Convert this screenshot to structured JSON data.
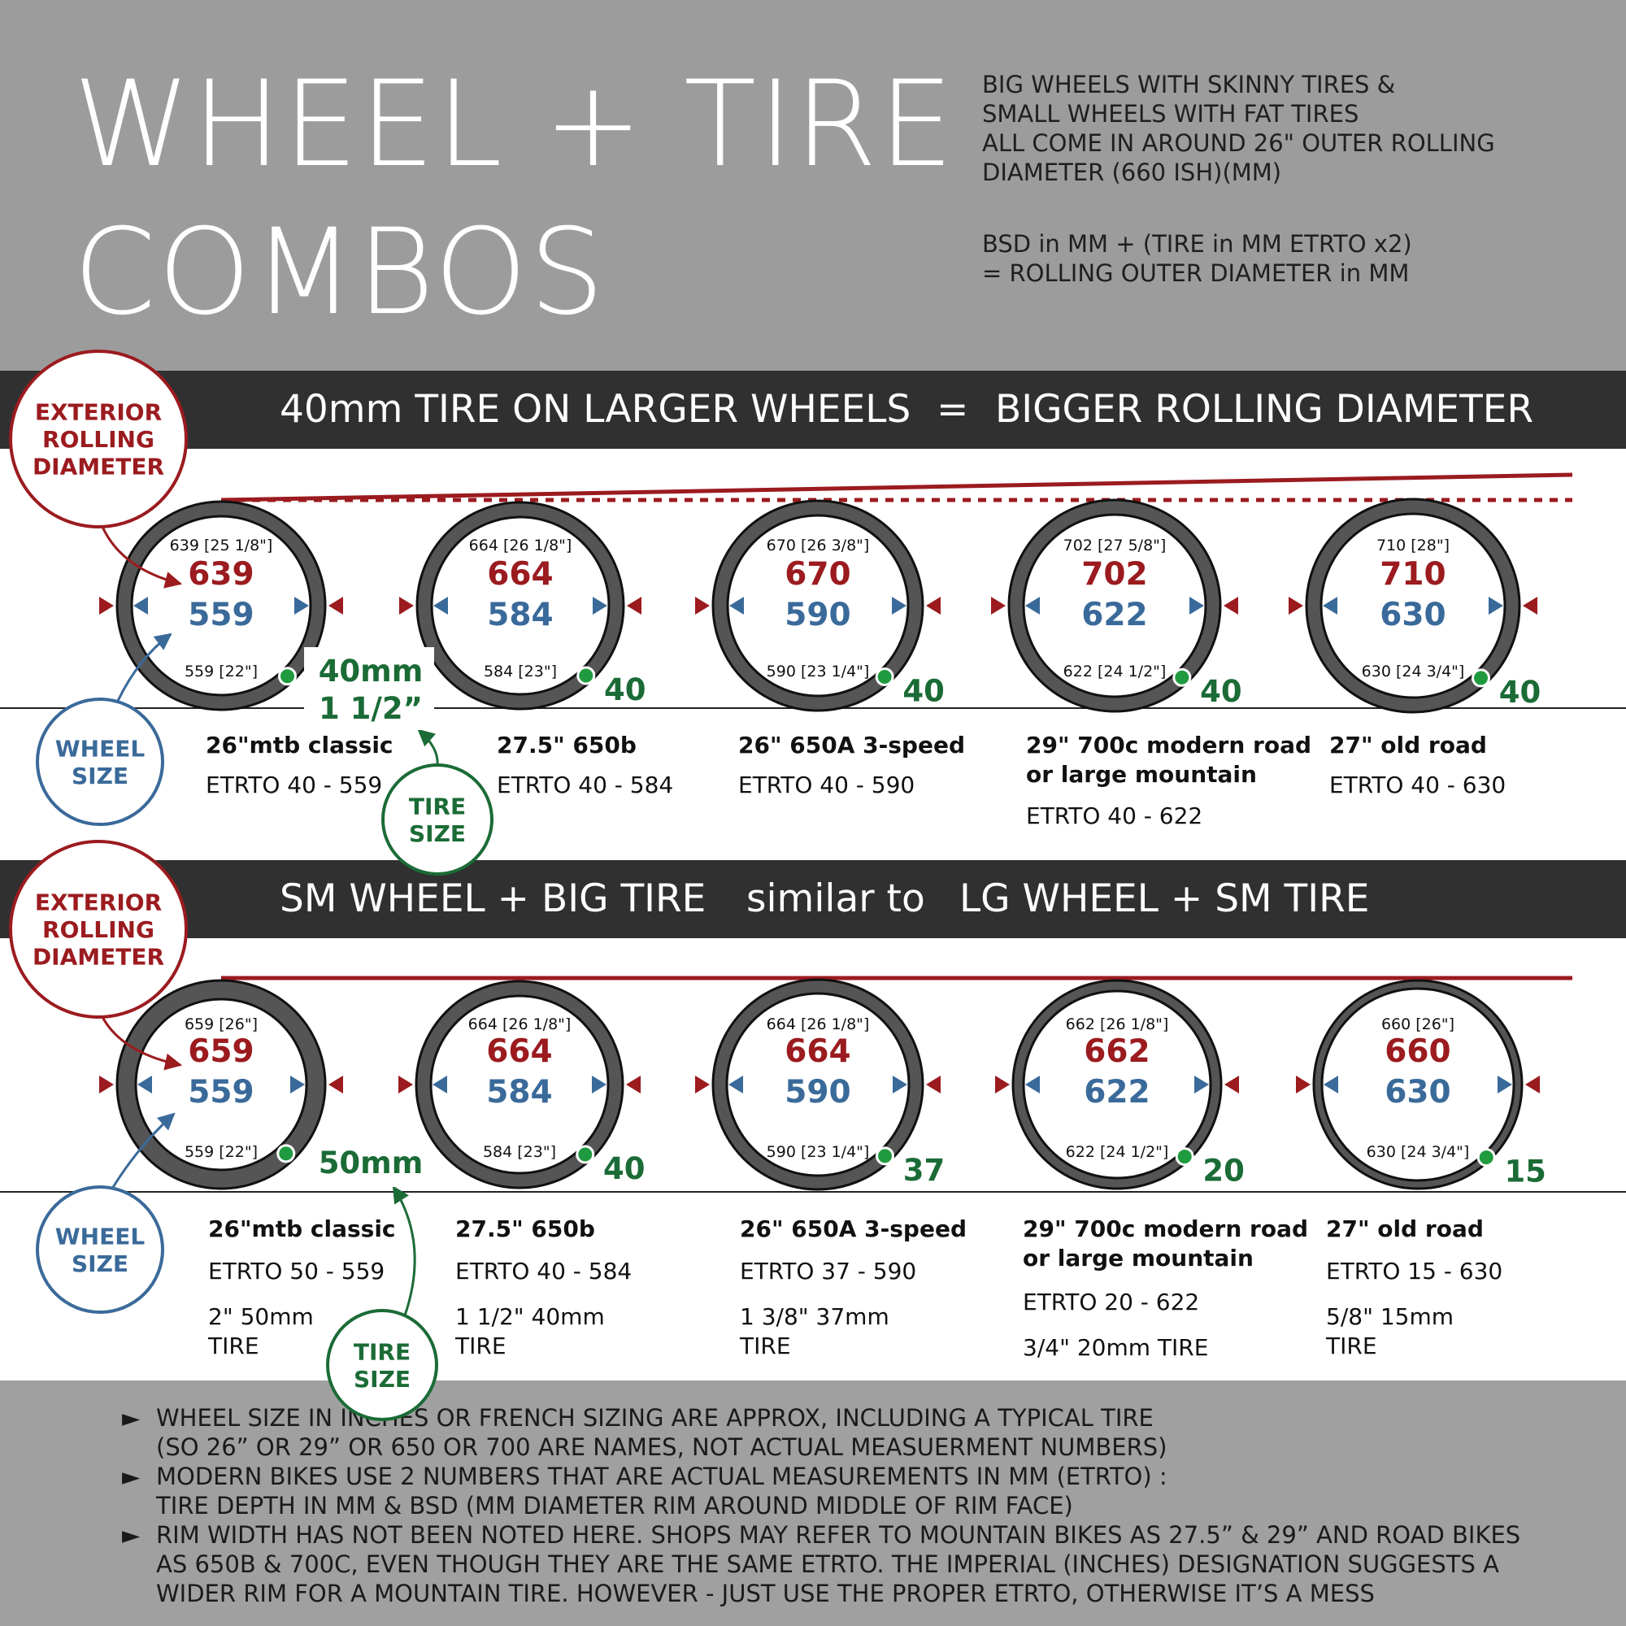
{
  "title": {
    "line1": "WHEEL + TIRE",
    "line2": "COMBOS"
  },
  "intro": {
    "lines": [
      "BIG WHEELS WITH SKINNY TIRES &",
      "SMALL WHEELS WITH FAT TIRES",
      "ALL COME IN AROUND 26\" OUTER ROLLING",
      "DIAMETER   (660 ISH)(MM)"
    ],
    "formula": [
      "BSD in MM + (TIRE in MM ETRTO x2)",
      "= ROLLING OUTER DIAMETER in MM"
    ]
  },
  "colors": {
    "exterior": "#9b1b1f",
    "wheel": "#3a6a9a",
    "tire": "#1b6b36",
    "tire_dot": "#1f9a3f",
    "band": "#303030",
    "banner": "#9c9c9c"
  },
  "callouts": {
    "exterior_line1": "EXTERIOR",
    "exterior_line2": "ROLLING",
    "exterior_line3": "DIAMETER",
    "wheel_line1": "WHEEL",
    "wheel_line2": "SIZE",
    "tire_line1": "TIRE",
    "tire_line2": "SIZE"
  },
  "section1": {
    "band": {
      "left": "40mm TIRE ON LARGER WHEELS",
      "mid": "=",
      "right": "BIGGER ROLLING DIAMETER"
    },
    "tire_callout_line1": "40mm",
    "tire_callout_line2": "1 1/2”",
    "wheels": [
      {
        "outer": "639",
        "outer_small": "639 [25 1/8\"]",
        "bsd": "559",
        "bsd_small": "559 [22\"]",
        "tire": "",
        "name": "26\"mtb classic",
        "name2": "",
        "etrto": "ETRTO 40 - 559"
      },
      {
        "outer": "664",
        "outer_small": "664 [26 1/8\"]",
        "bsd": "584",
        "bsd_small": "584 [23\"]",
        "tire": "40",
        "name": "27.5\" 650b",
        "name2": "",
        "etrto": "ETRTO 40 - 584"
      },
      {
        "outer": "670",
        "outer_small": "670 [26 3/8\"]",
        "bsd": "590",
        "bsd_small": "590 [23 1/4\"]",
        "tire": "40",
        "name": "26\" 650A 3-speed",
        "name2": "",
        "etrto": "ETRTO 40 - 590"
      },
      {
        "outer": "702",
        "outer_small": "702 [27 5/8\"]",
        "bsd": "622",
        "bsd_small": "622 [24 1/2\"]",
        "tire": "40",
        "name": "29\" 700c modern road",
        "name2": "or large mountain",
        "etrto": "ETRTO 40 - 622"
      },
      {
        "outer": "710",
        "outer_small": "710 [28\"]",
        "bsd": "630",
        "bsd_small": "630 [24 3/4\"]",
        "tire": "40",
        "name": "27\" old road",
        "name2": "",
        "etrto": "ETRTO 40 - 630"
      }
    ]
  },
  "section2": {
    "band": {
      "left": "SM WHEEL + BIG TIRE",
      "mid": "similar to",
      "right": "LG WHEEL + SM TIRE"
    },
    "tire_callout": "50mm",
    "wheels": [
      {
        "outer": "659",
        "outer_small": "659 [26\"]",
        "bsd": "559",
        "bsd_small": "559 [22\"]",
        "tire": "",
        "name": "26\"mtb classic",
        "name2": "",
        "etrto": "ETRTO 50 - 559",
        "tire_desc1": "2\" 50mm",
        "tire_desc2": "TIRE"
      },
      {
        "outer": "664",
        "outer_small": "664 [26 1/8\"]",
        "bsd": "584",
        "bsd_small": "584 [23\"]",
        "tire": "40",
        "name": "27.5\" 650b",
        "name2": "",
        "etrto": "ETRTO 40 - 584",
        "tire_desc1": "1 1/2\"  40mm",
        "tire_desc2": "TIRE"
      },
      {
        "outer": "664",
        "outer_small": "664 [26 1/8\"]",
        "bsd": "590",
        "bsd_small": "590 [23 1/4\"]",
        "tire": "37",
        "name": "26\" 650A 3-speed",
        "name2": "",
        "etrto": "ETRTO 37 - 590",
        "tire_desc1": "1 3/8\" 37mm",
        "tire_desc2": " TIRE"
      },
      {
        "outer": "662",
        "outer_small": "662 [26 1/8\"]",
        "bsd": "622",
        "bsd_small": "622 [24 1/2\"]",
        "tire": "20",
        "name": "29\" 700c modern road",
        "name2": "or large mountain",
        "etrto": "ETRTO 20 - 622",
        "tire_desc1": "3/4\" 20mm TIRE",
        "tire_desc2": ""
      },
      {
        "outer": "660",
        "outer_small": "660 [26\"]",
        "bsd": "630",
        "bsd_small": "630 [24 3/4\"]",
        "tire": "15",
        "name": "27\" old road",
        "name2": "",
        "etrto": "ETRTO 15 - 630",
        "tire_desc1": "5/8\" 15mm",
        "tire_desc2": "TIRE"
      }
    ]
  },
  "notes": [
    {
      "bullet": "►",
      "line1": "WHEEL SIZE IN INCHES OR FRENCH SIZING ARE APPROX, INCLUDING A TYPICAL TIRE",
      "line2": " (SO 26” OR 29” OR 650 OR 700 ARE NAMES, NOT ACTUAL MEASUERMENT NUMBERS)",
      "line3": ""
    },
    {
      "bullet": "►",
      "line1": "MODERN BIKES USE 2 NUMBERS THAT ARE ACTUAL MEASUREMENTS IN MM  (ETRTO) :",
      "line2": "  TIRE DEPTH IN MM  &  BSD (MM DIAMETER RIM AROUND MIDDLE OF RIM FACE)",
      "line3": ""
    },
    {
      "bullet": "►",
      "line1": "RIM WIDTH HAS NOT BEEN NOTED HERE. SHOPS MAY REFER TO MOUNTAIN BIKES AS 27.5” & 29” AND ROAD BIKES",
      "line2": "AS 650B & 700C, EVEN THOUGH THEY ARE THE SAME ETRTO.   THE IMPERIAL (INCHES) DESIGNATION SUGGESTS A",
      "line3": "WIDER RIM FOR A MOUNTAIN TIRE.   HOWEVER - JUST USE THE PROPER ETRTO, OTHERWISE IT’S A MESS"
    }
  ]
}
